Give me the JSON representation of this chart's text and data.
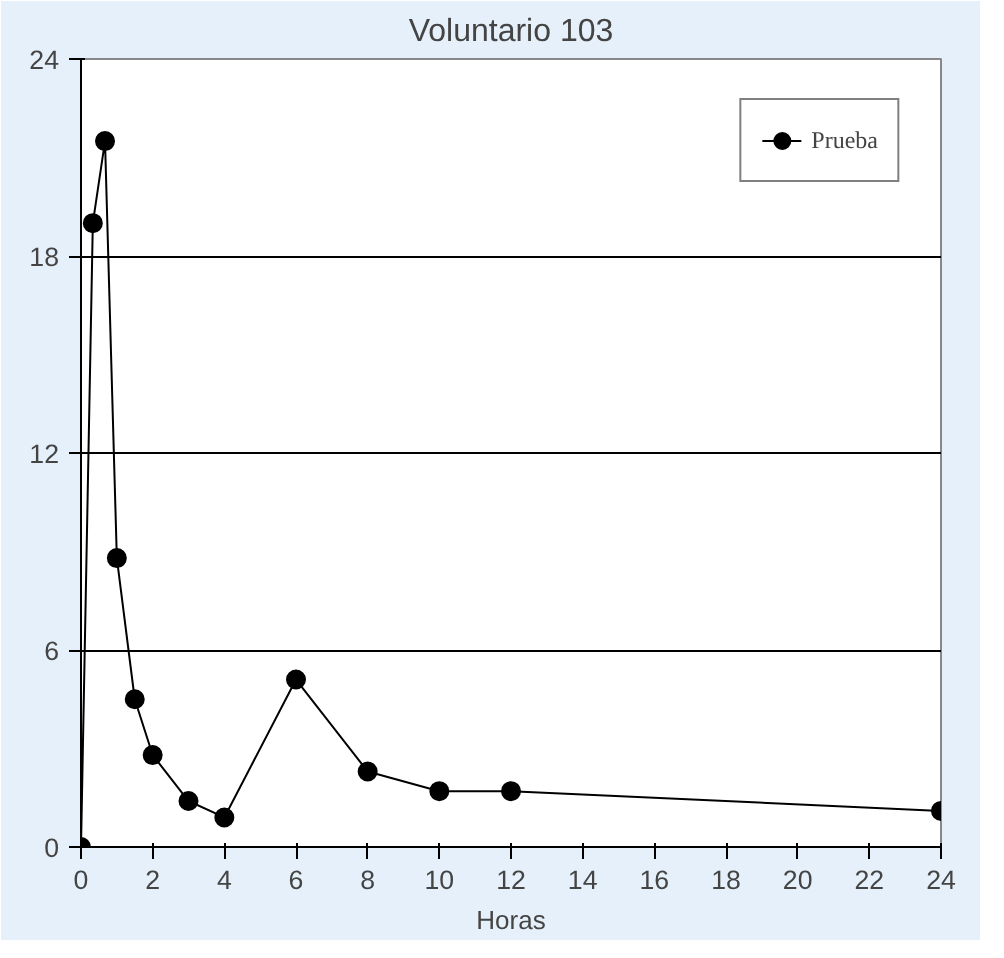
{
  "chart_data": {
    "type": "line",
    "title": "Voluntario 103",
    "xlabel": "Horas",
    "x": [
      0,
      0.33,
      0.67,
      1,
      1.5,
      2,
      3,
      4,
      6,
      8,
      10,
      12,
      24
    ],
    "series": [
      {
        "name": "Prueba",
        "color": "#000000",
        "values": [
          0,
          19.0,
          21.5,
          8.8,
          4.5,
          2.8,
          1.4,
          0.9,
          5.1,
          2.3,
          1.7,
          1.7,
          1.1
        ]
      }
    ],
    "xlim": [
      0,
      24
    ],
    "xticks": [
      0,
      2,
      4,
      6,
      8,
      10,
      12,
      14,
      16,
      18,
      20,
      22,
      24
    ],
    "ylim": [
      0,
      24
    ],
    "yticks": [
      0,
      6,
      12,
      18,
      24
    ],
    "grid": "y",
    "legend": "top right",
    "marker": "circle",
    "line_style": "solid"
  }
}
